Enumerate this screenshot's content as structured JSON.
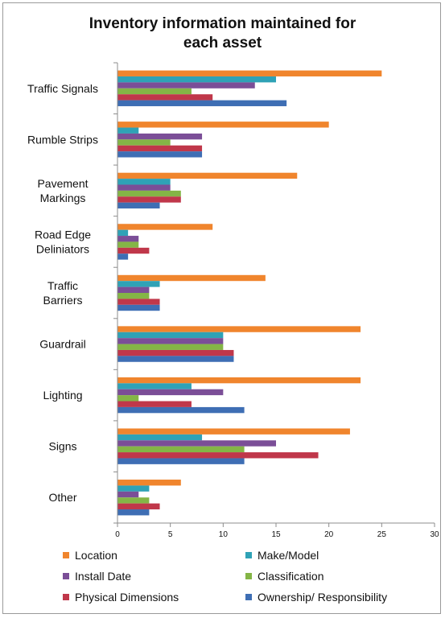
{
  "chart_data": {
    "type": "bar",
    "orientation": "horizontal",
    "title": "Inventory information maintained for each asset",
    "title_lines": [
      "Inventory information maintained for",
      "each asset"
    ],
    "categories": [
      "Traffic Signals",
      "Rumble Strips",
      "Pavement Markings",
      "Road Edge Deliniators",
      "Traffic Barriers",
      "Guardrail",
      "Lighting",
      "Signs",
      "Other"
    ],
    "category_label_lines": [
      [
        "Traffic Signals"
      ],
      [
        "Rumble Strips"
      ],
      [
        "Pavement",
        "Markings"
      ],
      [
        "Road Edge",
        "Deliniators"
      ],
      [
        "Traffic",
        "Barriers"
      ],
      [
        "Guardrail"
      ],
      [
        "Lighting"
      ],
      [
        "Signs"
      ],
      [
        "Other"
      ]
    ],
    "series": [
      {
        "name": "Location",
        "color": "#F0852D",
        "values": [
          25,
          20,
          17,
          9,
          14,
          23,
          23,
          22,
          6
        ]
      },
      {
        "name": "Make/Model",
        "color": "#2FA2B6",
        "values": [
          15,
          2,
          5,
          1,
          4,
          10,
          7,
          8,
          3
        ]
      },
      {
        "name": "Install Date",
        "color": "#7B4E97",
        "values": [
          13,
          8,
          5,
          2,
          3,
          10,
          10,
          15,
          2
        ]
      },
      {
        "name": "Classification",
        "color": "#84B546",
        "values": [
          7,
          5,
          6,
          2,
          3,
          10,
          2,
          12,
          3
        ]
      },
      {
        "name": "Physical Dimensions",
        "color": "#C0374A",
        "values": [
          9,
          8,
          6,
          3,
          4,
          11,
          7,
          19,
          4
        ]
      },
      {
        "name": "Ownership/ Responsibility",
        "color": "#3E6EB4",
        "values": [
          16,
          8,
          4,
          1,
          4,
          11,
          12,
          12,
          3
        ]
      }
    ],
    "xlim": [
      0,
      30
    ],
    "xticks": [
      0,
      5,
      10,
      15,
      20,
      25,
      30
    ],
    "grid": false,
    "legend_position": "bottom"
  }
}
